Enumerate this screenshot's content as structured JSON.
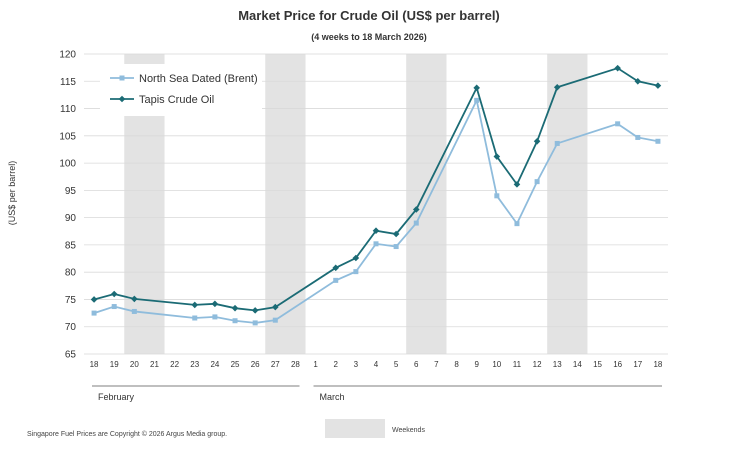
{
  "chart_data": {
    "type": "line",
    "title": "Market Price for Crude Oil",
    "title_unit": "(US$ per barrel)",
    "subtitle": "(4 weeks to 18 March 2026)",
    "ylabel": "(US$ per barrel)",
    "xlabel": "",
    "ylim": [
      65,
      120
    ],
    "yticks": [
      65,
      70,
      75,
      80,
      85,
      90,
      95,
      100,
      105,
      110,
      115,
      120
    ],
    "grid": true,
    "legend_position": "top-left",
    "categories": [
      "18",
      "19",
      "20",
      "21",
      "22",
      "23",
      "24",
      "25",
      "26",
      "27",
      "28",
      "1",
      "2",
      "3",
      "4",
      "5",
      "6",
      "7",
      "8",
      "9",
      "10",
      "11",
      "12",
      "13",
      "14",
      "15",
      "16",
      "17",
      "18"
    ],
    "months": [
      {
        "label": "February",
        "start_index": 0,
        "end_index": 10
      },
      {
        "label": "March",
        "start_index": 11,
        "end_index": 28
      }
    ],
    "weekend_bands": [
      [
        2,
        3
      ],
      [
        9,
        10
      ],
      [
        16,
        17
      ],
      [
        23,
        24
      ]
    ],
    "series": [
      {
        "name": "North Sea Dated (Brent)",
        "color": "#8fbcdc",
        "marker": "square",
        "values": [
          72.5,
          73.7,
          72.8,
          null,
          null,
          71.6,
          71.8,
          71.1,
          70.7,
          71.2,
          null,
          null,
          78.5,
          80.1,
          85.2,
          84.7,
          89.0,
          null,
          null,
          111.5,
          94.0,
          88.9,
          96.6,
          103.6,
          null,
          null,
          107.2,
          104.7,
          104.0
        ]
      },
      {
        "name": "Tapis Crude Oil",
        "color": "#1b6b75",
        "marker": "diamond",
        "values": [
          75.0,
          76.0,
          75.1,
          null,
          null,
          74.0,
          74.2,
          73.4,
          73.0,
          73.6,
          null,
          null,
          80.8,
          82.6,
          87.6,
          87.0,
          91.5,
          null,
          null,
          113.8,
          101.2,
          96.1,
          104.0,
          113.9,
          null,
          null,
          117.4,
          115.0,
          114.2
        ]
      }
    ],
    "footer_note": "Singapore Fuel Prices are Copyright © 2026 Argus Media group.",
    "weekends_label": "Weekends"
  }
}
